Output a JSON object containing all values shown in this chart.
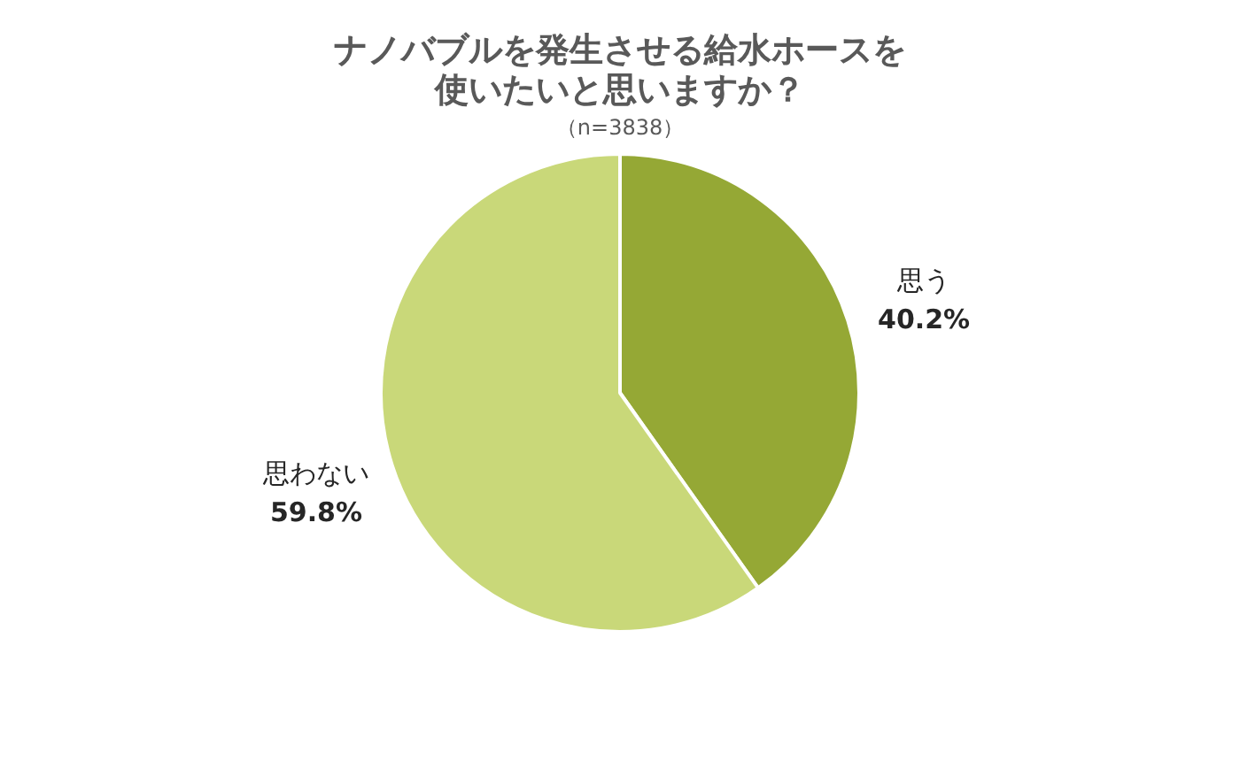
{
  "chart_data": {
    "type": "pie",
    "title": "ナノバブルを発生させる給水ホースを使いたいと思いますか？",
    "subtitle": "（n=3838）",
    "categories": [
      "思う",
      "思わない"
    ],
    "values": [
      40.2,
      59.8
    ],
    "colors": [
      "#95a835",
      "#c9d879"
    ],
    "value_labels": [
      "40.2%",
      "59.8%"
    ],
    "legend": false
  }
}
